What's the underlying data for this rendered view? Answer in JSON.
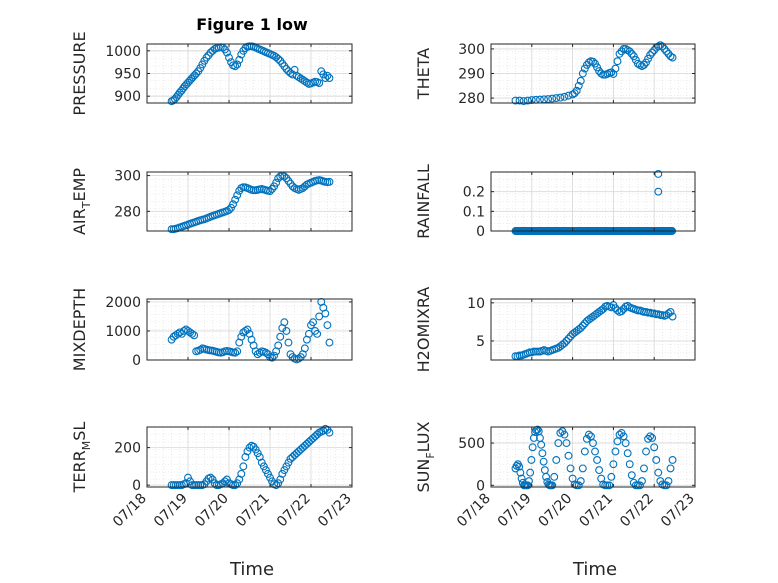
{
  "figure": {
    "title": "Figure 1 low",
    "xlabel": "Time",
    "x_ticks": [
      "07/18",
      "07/19",
      "07/20",
      "07/21",
      "07/22",
      "07/23"
    ]
  },
  "marker_color": "#0072BD",
  "chart_data": [
    {
      "type": "scatter",
      "id": "pressure",
      "ylabel": "PRESSURE",
      "xlim": [
        0,
        5
      ],
      "ylim": [
        885,
        1015
      ],
      "yticks": [
        900,
        950,
        1000
      ],
      "x": [
        0.6,
        0.64,
        0.68,
        0.72,
        0.76,
        0.8,
        0.84,
        0.88,
        0.92,
        0.96,
        1.0,
        1.04,
        1.08,
        1.12,
        1.16,
        1.2,
        1.25,
        1.3,
        1.35,
        1.4,
        1.45,
        1.5,
        1.55,
        1.6,
        1.65,
        1.7,
        1.75,
        1.8,
        1.85,
        1.9,
        1.95,
        2.0,
        2.05,
        2.1,
        2.15,
        2.2,
        2.25,
        2.3,
        2.35,
        2.4,
        2.45,
        2.5,
        2.55,
        2.6,
        2.65,
        2.7,
        2.75,
        2.8,
        2.85,
        2.9,
        2.95,
        3.0,
        3.05,
        3.1,
        3.15,
        3.2,
        3.25,
        3.3,
        3.35,
        3.4,
        3.45,
        3.5,
        3.55,
        3.6,
        3.65,
        3.7,
        3.75,
        3.8,
        3.85,
        3.9,
        3.95,
        4.0,
        4.05,
        4.1,
        4.15,
        4.2,
        4.25,
        4.3,
        4.35,
        4.4,
        4.45
      ],
      "y": [
        889,
        891,
        894,
        898,
        903,
        908,
        912,
        917,
        922,
        926,
        930,
        934,
        938,
        942,
        946,
        950,
        955,
        962,
        970,
        978,
        985,
        990,
        996,
        1000,
        1004,
        1006,
        1007,
        1008,
        1007,
        1003,
        996,
        985,
        975,
        968,
        966,
        970,
        980,
        992,
        1000,
        1006,
        1009,
        1010,
        1010,
        1009,
        1007,
        1005,
        1003,
        1001,
        999,
        997,
        995,
        993,
        991,
        989,
        986,
        982,
        978,
        972,
        966,
        960,
        955,
        951,
        948,
        958,
        945,
        942,
        939,
        936,
        933,
        930,
        927,
        928,
        930,
        932,
        931,
        929,
        955,
        948,
        940,
        945,
        940
      ],
      "sort_note": ""
    },
    {
      "type": "scatter",
      "id": "theta",
      "ylabel": "THETA",
      "xlim": [
        0,
        5
      ],
      "ylim": [
        278,
        302
      ],
      "yticks": [
        280,
        290,
        300
      ],
      "x": [
        0.6,
        0.7,
        0.8,
        0.9,
        1.0,
        1.1,
        1.2,
        1.3,
        1.4,
        1.5,
        1.6,
        1.7,
        1.8,
        1.9,
        2.0,
        2.05,
        2.1,
        2.15,
        2.2,
        2.25,
        2.3,
        2.35,
        2.4,
        2.45,
        2.5,
        2.55,
        2.6,
        2.65,
        2.7,
        2.75,
        2.8,
        2.85,
        2.9,
        2.95,
        3.0,
        3.05,
        3.1,
        3.15,
        3.2,
        3.25,
        3.3,
        3.35,
        3.4,
        3.45,
        3.5,
        3.55,
        3.6,
        3.65,
        3.7,
        3.75,
        3.8,
        3.85,
        3.9,
        3.95,
        4.0,
        4.05,
        4.1,
        4.15,
        4.2,
        4.25,
        4.3,
        4.35,
        4.4,
        4.45
      ],
      "y": [
        279,
        279,
        278.8,
        279,
        279.2,
        279.3,
        279.4,
        279.5,
        279.6,
        279.8,
        280,
        280.2,
        280.5,
        281,
        281.5,
        282,
        283,
        285,
        287,
        290,
        292,
        293.5,
        294.5,
        295,
        294.8,
        294,
        292.5,
        291,
        290,
        289.5,
        289.5,
        289.8,
        290.2,
        290.5,
        289.8,
        292,
        295,
        298,
        299,
        300,
        300,
        299.5,
        299,
        298,
        297,
        295.5,
        294,
        293.5,
        293,
        293.5,
        294.5,
        296,
        297.5,
        298.5,
        299.5,
        300.5,
        301,
        301.5,
        301,
        300,
        299,
        298,
        297,
        296.5
      ]
    },
    {
      "type": "scatter",
      "id": "air_temp",
      "ylabel": "AIR_TEMP",
      "xlim": [
        0,
        5
      ],
      "ylim": [
        269,
        302
      ],
      "yticks": [
        280,
        300
      ],
      "x": [
        0.6,
        0.65,
        0.7,
        0.75,
        0.8,
        0.85,
        0.9,
        0.95,
        1.0,
        1.05,
        1.1,
        1.15,
        1.2,
        1.25,
        1.3,
        1.35,
        1.4,
        1.45,
        1.5,
        1.55,
        1.6,
        1.65,
        1.7,
        1.75,
        1.8,
        1.85,
        1.9,
        1.95,
        2.0,
        2.05,
        2.1,
        2.15,
        2.2,
        2.25,
        2.3,
        2.35,
        2.4,
        2.45,
        2.5,
        2.55,
        2.6,
        2.65,
        2.7,
        2.75,
        2.8,
        2.85,
        2.9,
        2.95,
        3.0,
        3.05,
        3.1,
        3.15,
        3.2,
        3.25,
        3.3,
        3.35,
        3.4,
        3.45,
        3.5,
        3.55,
        3.6,
        3.65,
        3.7,
        3.75,
        3.8,
        3.85,
        3.9,
        3.95,
        4.0,
        4.05,
        4.1,
        4.15,
        4.2,
        4.25,
        4.3,
        4.35,
        4.4,
        4.45
      ],
      "y": [
        270,
        270,
        270.3,
        270.6,
        271,
        271.4,
        271.8,
        272.2,
        272.6,
        273,
        273.4,
        273.8,
        274.2,
        274.6,
        275,
        275.3,
        275.6,
        276,
        276.5,
        277,
        277.4,
        277.8,
        278.2,
        278.6,
        279,
        279.4,
        279.8,
        280.2,
        280.8,
        282,
        284,
        286.5,
        289,
        291.5,
        293,
        293.5,
        293.4,
        293,
        292.5,
        292,
        291.8,
        291.8,
        292,
        292.3,
        292.5,
        292.2,
        291.8,
        291.5,
        291.3,
        292.5,
        294,
        296,
        298.5,
        299.5,
        300,
        299.5,
        298.5,
        297,
        295.5,
        294,
        293,
        292.5,
        292,
        292.5,
        293,
        294,
        295,
        295.5,
        296,
        296.5,
        297,
        297.3,
        297.5,
        297.2,
        296.8,
        296.5,
        296.3,
        296.5
      ]
    },
    {
      "type": "scatter",
      "id": "rainfall",
      "ylabel": "RAINFALL",
      "xlim": [
        0,
        5
      ],
      "ylim": [
        0,
        0.3
      ],
      "yticks": [
        0,
        0.1,
        0.2
      ],
      "ytick_labels": [
        "0",
        "0.1",
        "0.2"
      ],
      "x_range": [
        0.6,
        4.45
      ],
      "baseline": 0,
      "extra_x": [
        4.1,
        4.1
      ],
      "extra_y": [
        0.29,
        0.2
      ]
    },
    {
      "type": "scatter",
      "id": "mixdepth",
      "ylabel": "MIXDEPTH",
      "xlim": [
        0,
        5
      ],
      "ylim": [
        0,
        2100
      ],
      "yticks": [
        0,
        1000,
        2000
      ],
      "x": [
        0.6,
        0.65,
        0.7,
        0.75,
        0.8,
        0.85,
        0.9,
        0.95,
        1.0,
        1.05,
        1.1,
        1.15,
        1.2,
        1.25,
        1.3,
        1.35,
        1.4,
        1.45,
        1.5,
        1.55,
        1.6,
        1.65,
        1.7,
        1.75,
        1.8,
        1.85,
        1.9,
        1.95,
        2.0,
        2.05,
        2.1,
        2.15,
        2.2,
        2.25,
        2.3,
        2.35,
        2.4,
        2.45,
        2.5,
        2.55,
        2.6,
        2.65,
        2.7,
        2.75,
        2.8,
        2.85,
        2.9,
        2.95,
        3.0,
        3.05,
        3.1,
        3.15,
        3.2,
        3.25,
        3.3,
        3.35,
        3.4,
        3.45,
        3.5,
        3.55,
        3.6,
        3.65,
        3.7,
        3.75,
        3.8,
        3.85,
        3.9,
        3.95,
        4.0,
        4.05,
        4.1,
        4.15,
        4.2,
        4.25,
        4.3,
        4.35,
        4.4,
        4.45
      ],
      "y": [
        700,
        800,
        850,
        900,
        950,
        900,
        1000,
        1050,
        1000,
        950,
        900,
        850,
        300,
        320,
        350,
        400,
        380,
        360,
        340,
        330,
        320,
        300,
        280,
        260,
        250,
        270,
        300,
        310,
        300,
        280,
        260,
        250,
        300,
        600,
        800,
        950,
        1000,
        1050,
        900,
        700,
        500,
        300,
        200,
        250,
        300,
        280,
        250,
        200,
        100,
        80,
        150,
        300,
        500,
        800,
        1100,
        1300,
        1000,
        600,
        200,
        100,
        50,
        20,
        50,
        100,
        200,
        400,
        700,
        900,
        1200,
        1300,
        1000,
        900,
        1500,
        2000,
        1800,
        1600,
        1200,
        600
      ]
    },
    {
      "type": "scatter",
      "id": "h2omixra",
      "ylabel": "H2OMIXRA",
      "xlim": [
        0,
        5
      ],
      "ylim": [
        2.5,
        10.5
      ],
      "yticks": [
        5,
        10
      ],
      "x": [
        0.6,
        0.65,
        0.7,
        0.75,
        0.8,
        0.85,
        0.9,
        0.95,
        1.0,
        1.05,
        1.1,
        1.15,
        1.2,
        1.25,
        1.3,
        1.35,
        1.4,
        1.45,
        1.5,
        1.55,
        1.6,
        1.65,
        1.7,
        1.75,
        1.8,
        1.85,
        1.9,
        1.95,
        2.0,
        2.05,
        2.1,
        2.15,
        2.2,
        2.25,
        2.3,
        2.35,
        2.4,
        2.45,
        2.5,
        2.55,
        2.6,
        2.65,
        2.7,
        2.75,
        2.8,
        2.85,
        2.9,
        2.95,
        3.0,
        3.05,
        3.1,
        3.15,
        3.2,
        3.25,
        3.3,
        3.35,
        3.4,
        3.45,
        3.5,
        3.55,
        3.6,
        3.65,
        3.7,
        3.75,
        3.8,
        3.85,
        3.9,
        3.95,
        4.0,
        4.05,
        4.1,
        4.15,
        4.2,
        4.25,
        4.3,
        4.35,
        4.4,
        4.45
      ],
      "y": [
        3,
        3,
        3.1,
        3.1,
        3.2,
        3.3,
        3.4,
        3.5,
        3.5,
        3.6,
        3.6,
        3.6,
        3.6,
        3.7,
        3.8,
        3.7,
        3.6,
        3.7,
        3.8,
        3.9,
        4,
        4.1,
        4.3,
        4.5,
        4.7,
        5,
        5.3,
        5.6,
        5.9,
        6.1,
        6.3,
        6.5,
        6.7,
        7,
        7.3,
        7.6,
        7.8,
        8,
        8.2,
        8.4,
        8.6,
        8.8,
        9,
        9.2,
        9.5,
        9.6,
        9.5,
        9.4,
        9.7,
        9.3,
        9.0,
        8.8,
        8.9,
        9.2,
        9.5,
        9.6,
        9.4,
        9.3,
        9.2,
        9.1,
        9.0,
        9.0,
        8.9,
        8.8,
        8.8,
        8.7,
        8.7,
        8.6,
        8.6,
        8.5,
        8.5,
        8.4,
        8.4,
        8.3,
        8.4,
        8.6,
        8.8,
        8.2
      ]
    },
    {
      "type": "scatter",
      "id": "terr_msl",
      "ylabel": "TERR_MSL",
      "xlim": [
        0,
        5
      ],
      "ylim": [
        -10,
        310
      ],
      "yticks": [
        0,
        200
      ],
      "x": [
        0.6,
        0.65,
        0.7,
        0.75,
        0.8,
        0.85,
        0.9,
        0.95,
        1.0,
        1.05,
        1.1,
        1.15,
        1.2,
        1.25,
        1.3,
        1.35,
        1.4,
        1.45,
        1.5,
        1.55,
        1.6,
        1.65,
        1.7,
        1.75,
        1.8,
        1.85,
        1.9,
        1.95,
        2.0,
        2.05,
        2.1,
        2.15,
        2.2,
        2.25,
        2.3,
        2.35,
        2.4,
        2.45,
        2.5,
        2.55,
        2.6,
        2.65,
        2.7,
        2.75,
        2.8,
        2.85,
        2.9,
        2.95,
        3.0,
        3.05,
        3.1,
        3.15,
        3.2,
        3.25,
        3.3,
        3.35,
        3.4,
        3.45,
        3.5,
        3.55,
        3.6,
        3.65,
        3.7,
        3.75,
        3.8,
        3.85,
        3.9,
        3.95,
        4.0,
        4.05,
        4.1,
        4.15,
        4.2,
        4.25,
        4.3,
        4.35,
        4.4,
        4.45
      ],
      "y": [
        0,
        0,
        0,
        0,
        0,
        0,
        5,
        10,
        40,
        20,
        0,
        0,
        0,
        0,
        0,
        0,
        5,
        20,
        35,
        40,
        30,
        10,
        0,
        0,
        5,
        10,
        20,
        30,
        10,
        5,
        0,
        0,
        10,
        30,
        60,
        100,
        150,
        180,
        200,
        210,
        205,
        190,
        170,
        150,
        120,
        100,
        80,
        60,
        40,
        20,
        5,
        0,
        10,
        30,
        60,
        80,
        100,
        120,
        140,
        150,
        160,
        170,
        180,
        190,
        200,
        210,
        220,
        230,
        240,
        250,
        260,
        270,
        280,
        285,
        290,
        300,
        295,
        280
      ]
    },
    {
      "type": "scatter",
      "id": "sun_flux",
      "ylabel": "SUN_FLUX",
      "xlim": [
        0,
        5
      ],
      "ylim": [
        -20,
        690
      ],
      "yticks": [
        0,
        500
      ],
      "x": [
        0.6,
        0.63,
        0.66,
        0.69,
        0.72,
        0.75,
        0.78,
        0.81,
        0.84,
        0.87,
        0.9,
        0.93,
        0.96,
        0.99,
        1.02,
        1.05,
        1.08,
        1.11,
        1.14,
        1.17,
        1.2,
        1.23,
        1.26,
        1.29,
        1.32,
        1.35,
        1.38,
        1.41,
        1.44,
        1.47,
        1.5,
        1.55,
        1.6,
        1.65,
        1.7,
        1.75,
        1.8,
        1.85,
        1.9,
        1.95,
        2.0,
        2.05,
        2.1,
        2.15,
        2.2,
        2.25,
        2.3,
        2.35,
        2.4,
        2.45,
        2.5,
        2.55,
        2.6,
        2.65,
        2.7,
        2.75,
        2.8,
        2.85,
        2.9,
        2.95,
        3.0,
        3.05,
        3.1,
        3.15,
        3.2,
        3.25,
        3.3,
        3.35,
        3.4,
        3.45,
        3.5,
        3.55,
        3.6,
        3.65,
        3.7,
        3.75,
        3.8,
        3.85,
        3.9,
        3.95,
        4.0,
        4.05,
        4.1,
        4.15,
        4.2,
        4.25,
        4.3,
        4.35,
        4.4,
        4.45
      ],
      "y": [
        200,
        230,
        250,
        220,
        150,
        80,
        30,
        0,
        0,
        0,
        0,
        50,
        150,
        300,
        450,
        560,
        630,
        650,
        660,
        640,
        560,
        480,
        380,
        280,
        180,
        100,
        40,
        10,
        0,
        0,
        0,
        100,
        300,
        500,
        620,
        640,
        600,
        500,
        350,
        200,
        80,
        10,
        0,
        0,
        50,
        200,
        400,
        550,
        600,
        580,
        500,
        400,
        300,
        180,
        80,
        10,
        0,
        0,
        0,
        100,
        250,
        400,
        520,
        600,
        620,
        580,
        500,
        380,
        250,
        120,
        30,
        0,
        0,
        0,
        50,
        200,
        400,
        550,
        580,
        560,
        450,
        300,
        150,
        50,
        10,
        0,
        0,
        50,
        200,
        300
      ]
    }
  ]
}
